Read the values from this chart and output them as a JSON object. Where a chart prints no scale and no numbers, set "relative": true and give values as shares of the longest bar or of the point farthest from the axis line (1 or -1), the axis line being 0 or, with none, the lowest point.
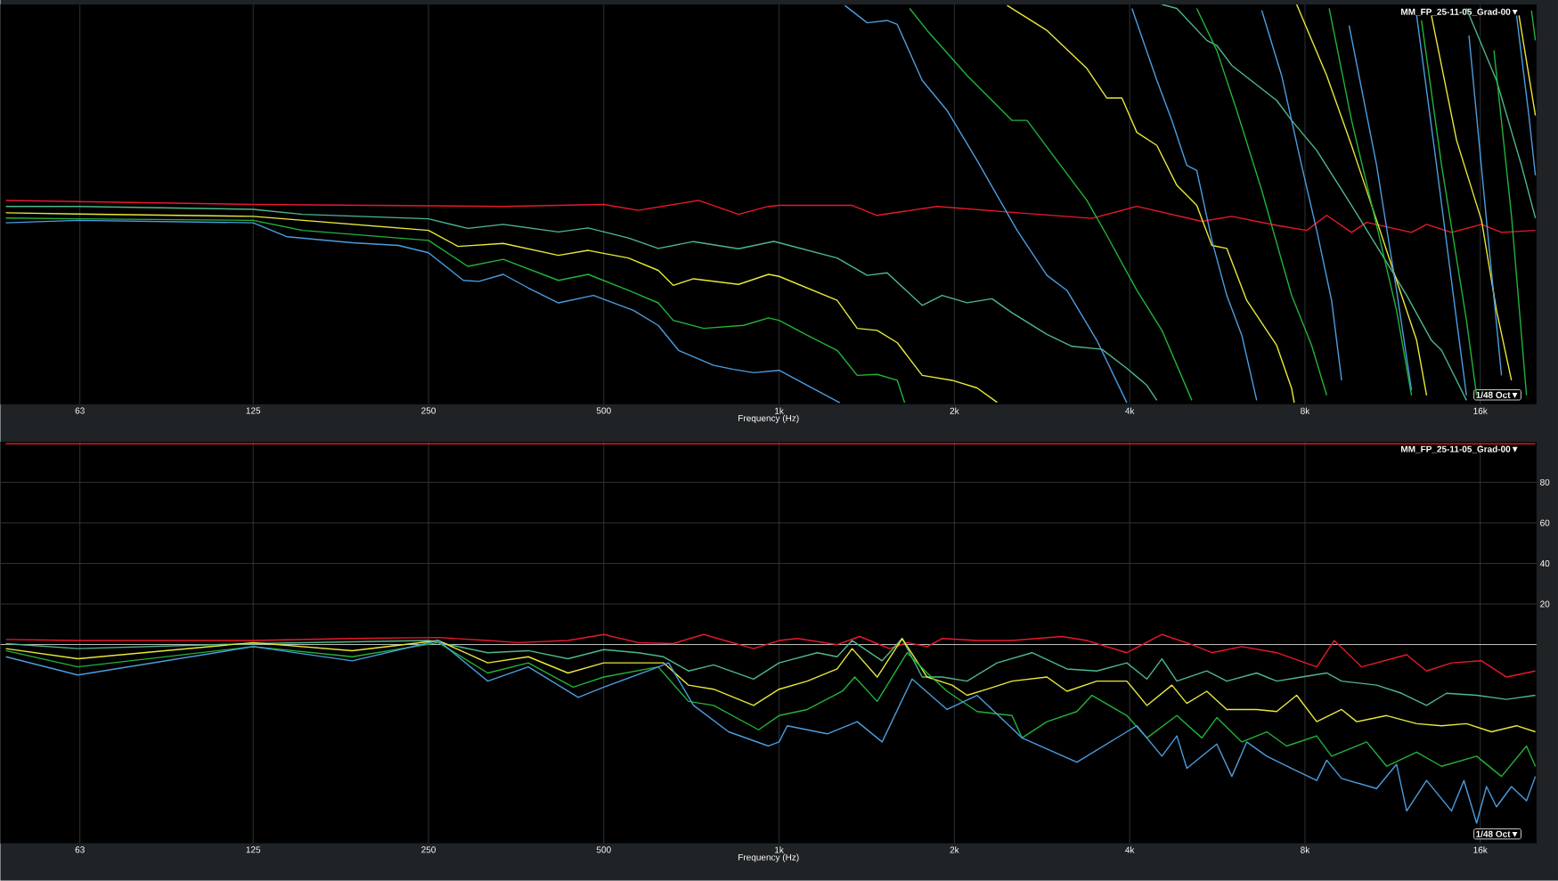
{
  "chart_data": [
    {
      "type": "line",
      "relative": true,
      "log": "x",
      "grid": "x",
      "tick_labels": "x",
      "xlabel": "Frequency (Hz)",
      "xlim": [
        46,
        20000
      ],
      "xticks": [
        63,
        125,
        250,
        500,
        {
          "value": 1000,
          "label": "1k"
        },
        {
          "value": 2000,
          "label": "2k"
        },
        {
          "value": 4000,
          "label": "4k"
        },
        {
          "value": 8000,
          "label": "8k"
        },
        {
          "value": 16000,
          "label": "16k"
        }
      ],
      "annotations": [
        "MM_FP_25-11-05_Grad-00▼",
        "1/48 Oct▼"
      ],
      "series": [
        {
          "color": "#e8192c",
          "x": [
            47,
            125,
            336,
            500,
            573,
            727,
            852,
            959,
            1000,
            1335,
            1474,
            1868,
            2512,
            3446,
            4115,
            5321,
            5991,
            7154,
            8054,
            8717,
            9618,
            10210,
            12190,
            12940,
            14280,
            16080,
            17400,
            19900
          ],
          "values": [
            0.51,
            0.5,
            0.495,
            0.5,
            0.485,
            0.51,
            0.475,
            0.495,
            0.4975,
            0.4975,
            0.4725,
            0.495,
            0.48,
            0.465,
            0.495,
            0.4575,
            0.47,
            0.4475,
            0.435,
            0.4725,
            0.43,
            0.455,
            0.43,
            0.45,
            0.43,
            0.45,
            0.43,
            0.435
          ]
        },
        {
          "color": "#4db88a",
          "x": [
            47,
            62.5,
            125,
            152,
            250,
            292,
            336,
            418,
            470,
            551,
            620,
            713,
            852,
            979,
            1000,
            1258,
            1417,
            1533,
            1761,
            1905,
            2103,
            2321,
            2512,
            2884,
            3184,
            3585,
            3956,
            4281,
            4454,
            null,
            4544,
            4820,
            5426,
            5645,
            5991,
            7154,
            7589,
            8380,
            9618,
            11270,
            11960,
            13190,
            13730,
            14570,
            15150,
            null,
            15150,
            17060,
            18830,
            19900
          ],
          "values": [
            0.495,
            0.495,
            0.4875,
            0.475,
            0.464,
            0.44,
            0.45,
            0.431,
            0.441,
            0.416,
            0.39,
            0.407,
            0.389,
            0.4075,
            0.404,
            0.366,
            0.3225,
            0.329,
            0.2475,
            0.2725,
            0.254,
            0.264,
            0.229,
            0.175,
            0.145,
            0.1375,
            0.09,
            0.0475,
            0.01,
            null,
            1.0,
            0.99,
            0.91,
            0.8975,
            0.8475,
            0.76,
            0.71,
            0.635,
            0.4975,
            0.335,
            0.2725,
            0.16,
            0.135,
            0.06,
            0.01,
            null,
            0.99,
            0.81,
            0.5975,
            0.466
          ]
        },
        {
          "color": "#e8e83a",
          "x": [
            47,
            62.5,
            125,
            250,
            281,
            336,
            418,
            470,
            551,
            620,
            658,
            713,
            852,
            959,
            1000,
            1258,
            1362,
            1474,
            1596,
            1761,
            1982,
            2188,
            2368,
            null,
            2464,
            2884,
            3377,
            3655,
            3880,
            4115,
            4454,
            4820,
            5215,
            5536,
            5872,
            6354,
            7154,
            7589,
            7668,
            null,
            7742,
            8717,
            9618,
            10620,
            11490,
            12440,
            12940,
            null,
            13190,
            14570,
            16080,
            17060,
            18100,
            null,
            18650,
            19900
          ],
          "values": [
            0.479,
            0.476,
            0.47,
            0.435,
            0.395,
            0.4025,
            0.3725,
            0.385,
            0.366,
            0.335,
            0.2975,
            0.314,
            0.3,
            0.325,
            0.32,
            0.26,
            0.19,
            0.185,
            0.154,
            0.0725,
            0.06,
            0.041,
            0.005,
            null,
            0.9975,
            0.935,
            0.84,
            0.766,
            0.766,
            0.68,
            0.6475,
            0.5475,
            0.4975,
            0.3975,
            0.39,
            0.26,
            0.1475,
            0.04,
            0.004,
            null,
            1.0,
            0.8225,
            0.6475,
            0.46,
            0.31,
            0.16,
            0.0225,
            null,
            0.9725,
            0.66,
            0.46,
            0.235,
            0.06,
            null,
            0.9725,
            0.7225
          ]
        },
        {
          "color": "#22b33a",
          "x": [
            47,
            62.5,
            125,
            152,
            250,
            292,
            336,
            418,
            470,
            551,
            620,
            658,
            742,
            869,
            959,
            1000,
            1118,
            1258,
            1362,
            1474,
            1596,
            1643,
            null,
            1676,
            1796,
            2103,
            2321,
            2512,
            2666,
            3000,
            3377,
            3655,
            4115,
            4544,
            5115,
            null,
            5215,
            5645,
            6108,
            6744,
            7294,
            7589,
            8213,
            8717,
            null,
            8803,
            9618,
            10620,
            11490,
            12190,
            null,
            12680,
            13730,
            15150,
            15770,
            null,
            16890,
            18100,
            19210,
            null,
            19590,
            19900
          ],
          "values": [
            0.466,
            0.464,
            0.46,
            0.435,
            0.41,
            0.345,
            0.3625,
            0.31,
            0.325,
            0.285,
            0.2537,
            0.21,
            0.19,
            0.1975,
            0.216,
            0.21,
            0.1725,
            0.135,
            0.0725,
            0.075,
            0.06,
            0.004,
            null,
            0.99,
            0.935,
            0.8225,
            0.76,
            0.71,
            0.71,
            0.61,
            0.51,
            0.4225,
            0.285,
            0.185,
            0.01,
            null,
            0.99,
            0.885,
            0.735,
            0.535,
            0.36,
            0.2725,
            0.1475,
            0.0225,
            null,
            0.99,
            0.71,
            0.4475,
            0.235,
            0.0225,
            null,
            0.96,
            0.5975,
            0.21,
            0.0225,
            null,
            0.885,
            0.4725,
            0.0225,
            null,
            0.985,
            0.91
          ]
        },
        {
          "color": "#4b9de0",
          "x": [
            47,
            62.5,
            125,
            143,
            185,
            222,
            250,
            287,
            305,
            336,
            371,
            418,
            480,
            562,
            620,
            672,
            772,
            835,
            904,
            1000,
            1118,
            1271,
            null,
            1297,
            1417,
            1533,
            1596,
            1761,
            1943,
            2188,
            2368,
            2563,
            2884,
            3121,
            3513,
            3956,
            null,
            4036,
            4454,
            4727,
            5014,
            5215,
            5536,
            5872,
            6232,
            6610,
            null,
            6744,
            7294,
            7895,
            8380,
            8888,
            9247,
            null,
            9525,
            10620,
            11490,
            12190,
            null,
            12440,
            13460,
            14570,
            15150,
            null,
            15300,
            16400,
            17400,
            null,
            18470,
            19390,
            19900
          ],
          "values": [
            0.454,
            0.46,
            0.454,
            0.419,
            0.404,
            0.3975,
            0.379,
            0.31,
            0.3075,
            0.325,
            0.291,
            0.2537,
            0.2725,
            0.235,
            0.1975,
            0.135,
            0.0975,
            0.0875,
            0.079,
            0.085,
            0.0475,
            0.004,
            null,
            0.9975,
            0.954,
            0.96,
            0.95,
            0.81,
            0.735,
            0.61,
            0.5225,
            0.435,
            0.3225,
            0.285,
            0.16,
            0.004,
            null,
            0.99,
            0.81,
            0.71,
            0.5975,
            0.585,
            0.41,
            0.2725,
            0.1725,
            0.01,
            null,
            0.985,
            0.8225,
            0.5975,
            0.435,
            0.26,
            0.06,
            null,
            0.9475,
            0.5975,
            0.285,
            0.035,
            null,
            0.9725,
            0.5975,
            0.21,
            0.0225,
            null,
            0.9225,
            0.46,
            0.0725,
            null,
            0.9725,
            0.7225,
            0.5725
          ]
        }
      ]
    },
    {
      "type": "line",
      "log": "x",
      "grid": true,
      "xlabel": "Frequency (Hz)",
      "xlim": [
        46,
        20000
      ],
      "ylim": [
        -98,
        100
      ],
      "xticks": [
        63,
        125,
        250,
        500,
        {
          "value": 1000,
          "label": "1k"
        },
        {
          "value": 2000,
          "label": "2k"
        },
        {
          "value": 4000,
          "label": "4k"
        },
        {
          "value": 8000,
          "label": "8k"
        },
        {
          "value": 16000,
          "label": "16k"
        }
      ],
      "yticks": [
        20,
        40,
        60,
        80
      ],
      "ref_lines": [
        {
          "axis": "y",
          "value": 0,
          "color": "#d0d0d0"
        }
      ],
      "annotations": [
        "MM_FP_25-11-05_Grad-00▼",
        "1/48 Oct▼"
      ],
      "series": [
        {
          "color": "#ff2020",
          "x": [
            47,
            1000,
            5000,
            19900
          ],
          "values": [
            99,
            99,
            99,
            99
          ]
        },
        {
          "color": "#e8192c",
          "x": [
            47,
            62.5,
            125,
            185,
            260,
            316,
            356,
            434,
            500,
            573,
            658,
            742,
            904,
            1000,
            1075,
            1258,
            1375,
            1548,
            1659,
            1796,
            1905,
            2188,
            2512,
            3060,
            3377,
            3956,
            4544,
            5115,
            5536,
            6232,
            7154,
            8380,
            8981,
            10010,
            11960,
            12940,
            14280,
            16080,
            17750,
            19900
          ],
          "values": [
            2.5,
            2,
            2,
            3,
            3.5,
            2,
            1,
            2,
            5,
            1,
            0.5,
            5,
            -2,
            2,
            3,
            0,
            4,
            -2,
            1,
            -1,
            3,
            2,
            2,
            4,
            2,
            -4,
            5,
            0,
            -4,
            -1,
            -4,
            -11,
            2,
            -11,
            -5,
            -13,
            -9,
            -8,
            -16,
            -13
          ]
        },
        {
          "color": "#4db88a",
          "x": [
            47,
            62.5,
            125,
            250,
            316,
            371,
            434,
            500,
            573,
            633,
            699,
            772,
            904,
            1000,
            1163,
            1258,
            1335,
            1503,
            1627,
            1761,
            1905,
            2103,
            2368,
            2719,
            3121,
            3513,
            3956,
            4281,
            4544,
            4820,
            5426,
            5872,
            6610,
            7154,
            7895,
            8717,
            9247,
            10620,
            11720,
            12940,
            14000,
            15770,
            17750,
            19900
          ],
          "values": [
            0.5,
            -2,
            0.5,
            2,
            -4,
            -3,
            -7,
            -2.5,
            -4,
            -6,
            -13,
            -10,
            -17,
            -9,
            -4,
            -6,
            2,
            -8,
            3,
            -16,
            -16,
            -18,
            -9,
            -4,
            -12,
            -13,
            -9,
            -17,
            -7,
            -18,
            -13,
            -18,
            -14,
            -18,
            -16,
            -14,
            -18,
            -20,
            -24,
            -30,
            -24,
            -25,
            -27,
            -25
          ]
        },
        {
          "color": "#e8e83a",
          "x": [
            47,
            62.5,
            125,
            185,
            260,
            316,
            371,
            434,
            500,
            633,
            699,
            772,
            904,
            1000,
            1118,
            1258,
            1335,
            1474,
            1627,
            1796,
            1982,
            2103,
            2276,
            2512,
            2884,
            3121,
            3513,
            3956,
            4281,
            4727,
            5014,
            5426,
            5872,
            6610,
            7154,
            7742,
            8380,
            9247,
            9814,
            11050,
            12440,
            13730,
            15150,
            16720,
            18470,
            19900
          ],
          "values": [
            -2,
            -7,
            1,
            -3,
            2,
            -9,
            -6,
            -14,
            -9,
            -9,
            -20,
            -22,
            -30,
            -22,
            -18,
            -12,
            -2,
            -16,
            3,
            -16,
            -20,
            -25,
            -22,
            -18,
            -16,
            -23,
            -18,
            -18,
            -30,
            -20,
            -29,
            -23,
            -32,
            -32,
            -33,
            -25,
            -38,
            -32,
            -38,
            -35,
            -39,
            -40,
            -39,
            -43,
            -40,
            -43
          ]
        },
        {
          "color": "#22b33a",
          "x": [
            47,
            62.5,
            125,
            185,
            260,
            316,
            371,
            443,
            500,
            620,
            699,
            772,
            922,
            1000,
            1118,
            1284,
            1349,
            1474,
            1659,
            1796,
            1943,
            2188,
            2512,
            2613,
            2884,
            3247,
            3446,
            3956,
            4281,
            4820,
            5321,
            5645,
            6232,
            6877,
            7443,
            8380,
            8888,
            10210,
            11050,
            12440,
            13730,
            15770,
            17400,
            19210,
            19900
          ],
          "values": [
            -3,
            -11,
            -1,
            -6,
            1,
            -14,
            -9,
            -21,
            -16,
            -11,
            -28,
            -30,
            -42,
            -35,
            -32,
            -23,
            -16,
            -28,
            -4,
            -14,
            -23,
            -33,
            -35,
            -46,
            -38,
            -33,
            -25,
            -35,
            -46,
            -35,
            -46,
            -36,
            -48,
            -43,
            -50,
            -45,
            -55,
            -48,
            -60,
            -53,
            -60,
            -55,
            -65,
            -50,
            -60
          ]
        },
        {
          "color": "#4b9de0",
          "x": [
            47,
            62.5,
            125,
            185,
            260,
            316,
            371,
            452,
            500,
            608,
            646,
            713,
            819,
            959,
            1000,
            1033,
            1210,
            1362,
            1503,
            1692,
            1943,
            2188,
            2613,
            3247,
            3956,
            4115,
            4544,
            4820,
            5014,
            5645,
            5991,
            6354,
            6877,
            7589,
            8380,
            8717,
            9247,
            10620,
            11490,
            11960,
            12940,
            14280,
            15000,
            15770,
            16400,
            17060,
            18100,
            19210,
            19900
          ],
          "values": [
            -6,
            -15,
            -1,
            -8,
            2,
            -18,
            -11,
            -26,
            -21,
            -12,
            -9,
            -30,
            -43,
            -50,
            -48,
            -40,
            -44,
            -38,
            -48,
            -17,
            -32,
            -25,
            -46,
            -58,
            -43,
            -40,
            -55,
            -45,
            -61,
            -49,
            -65,
            -48,
            -55,
            -61,
            -67,
            -57,
            -66,
            -71,
            -59,
            -82,
            -67,
            -82,
            -67,
            -88,
            -70,
            -80,
            -70,
            -77,
            -65
          ]
        }
      ]
    }
  ]
}
